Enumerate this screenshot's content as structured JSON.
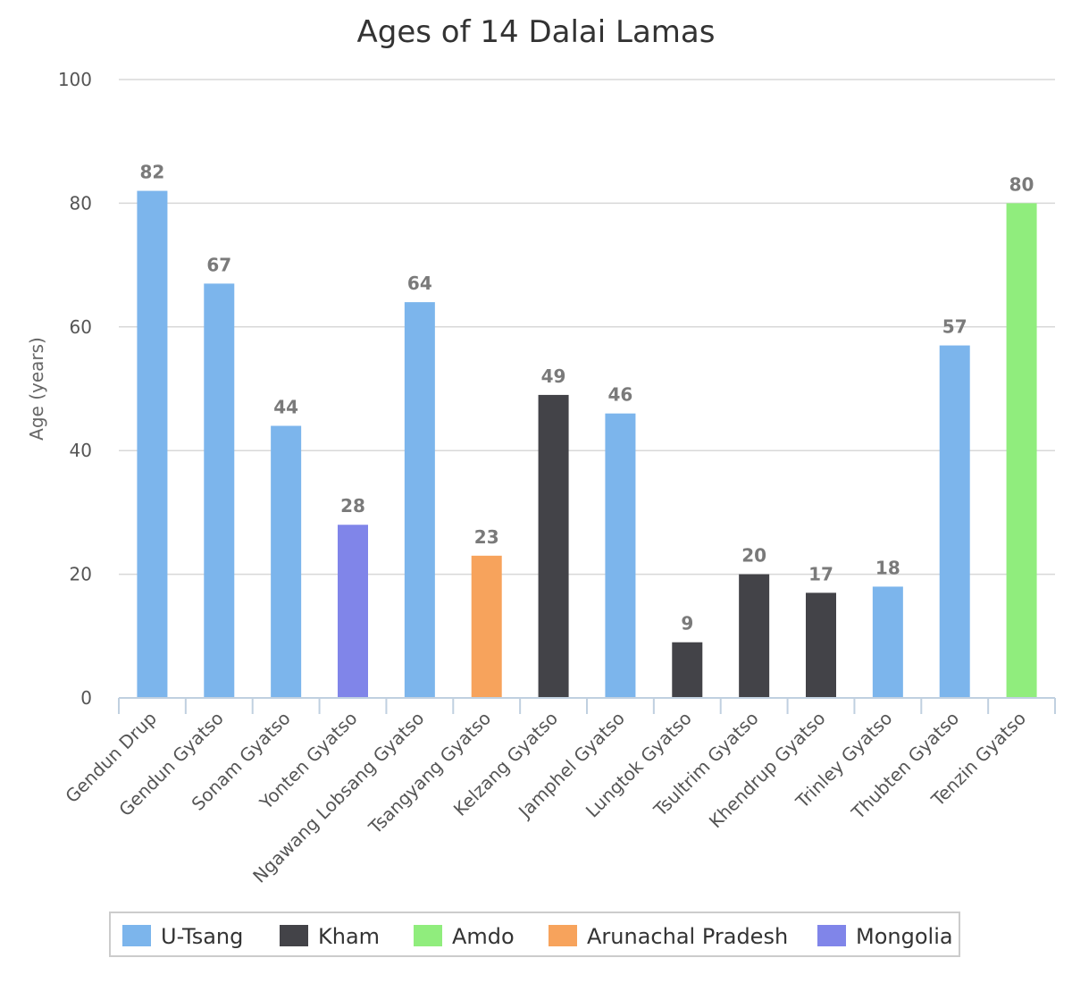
{
  "chart_data": {
    "type": "bar",
    "title": "Ages of 14 Dalai Lamas",
    "xlabel": "",
    "ylabel": "Age (years)",
    "ylim": [
      0,
      100
    ],
    "yticks": [
      0,
      20,
      40,
      60,
      80,
      100
    ],
    "grid": true,
    "legend_position": "bottom",
    "categories": [
      "Gendun Drup",
      "Gendun Gyatso",
      "Sonam Gyatso",
      "Yonten Gyatso",
      "Ngawang Lobsang Gyatso",
      "Tsangyang Gyatso",
      "Kelzang Gyatso",
      "Jamphel Gyatso",
      "Lungtok Gyatso",
      "Tsultrim Gyatso",
      "Khendrup Gyatso",
      "Trinley Gyatso",
      "Thubten Gyatso",
      "Tenzin Gyatso"
    ],
    "values": [
      82,
      67,
      44,
      28,
      64,
      23,
      49,
      46,
      9,
      20,
      17,
      18,
      57,
      80
    ],
    "regions": [
      "U-Tsang",
      "U-Tsang",
      "U-Tsang",
      "Mongolia",
      "U-Tsang",
      "Arunachal Pradesh",
      "Kham",
      "U-Tsang",
      "Kham",
      "Kham",
      "Kham",
      "U-Tsang",
      "U-Tsang",
      "Amdo"
    ],
    "legend": [
      {
        "name": "U-Tsang",
        "color": "#7cb5ec"
      },
      {
        "name": "Kham",
        "color": "#434348"
      },
      {
        "name": "Amdo",
        "color": "#90ed7d"
      },
      {
        "name": "Arunachal Pradesh",
        "color": "#f7a35c"
      },
      {
        "name": "Mongolia",
        "color": "#8085e9"
      }
    ]
  }
}
